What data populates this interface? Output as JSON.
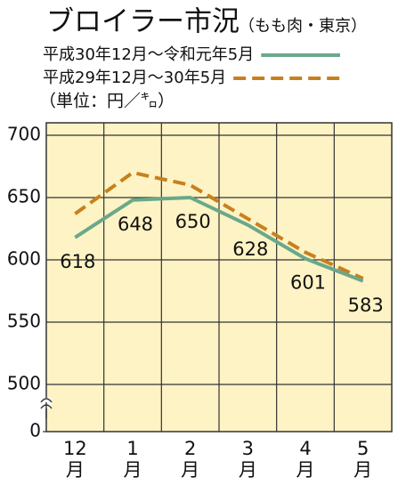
{
  "chart_data": {
    "type": "line",
    "title": "ブロイラー市況",
    "subtitle": "（もも肉・東京）",
    "unit_label": "（単位：円／㌔）",
    "categories": [
      "12月",
      "1月",
      "2月",
      "3月",
      "4月",
      "5月"
    ],
    "series": [
      {
        "name": "平成30年12月～令和元年5月",
        "color": "#6aa88a",
        "dashed": false,
        "values": [
          618,
          648,
          650,
          628,
          601,
          583
        ]
      },
      {
        "name": "平成29年12月～30年5月",
        "color": "#c8801e",
        "dashed": true,
        "values": [
          637,
          670,
          660,
          633,
          606,
          585
        ]
      }
    ],
    "value_labels_series": 0,
    "ylim": [
      0,
      710
    ],
    "axis_break": [
      0,
      500
    ],
    "yticks": [
      0,
      500,
      550,
      600,
      650,
      700
    ],
    "grid": true,
    "plot_background": "#fdf3c4"
  }
}
